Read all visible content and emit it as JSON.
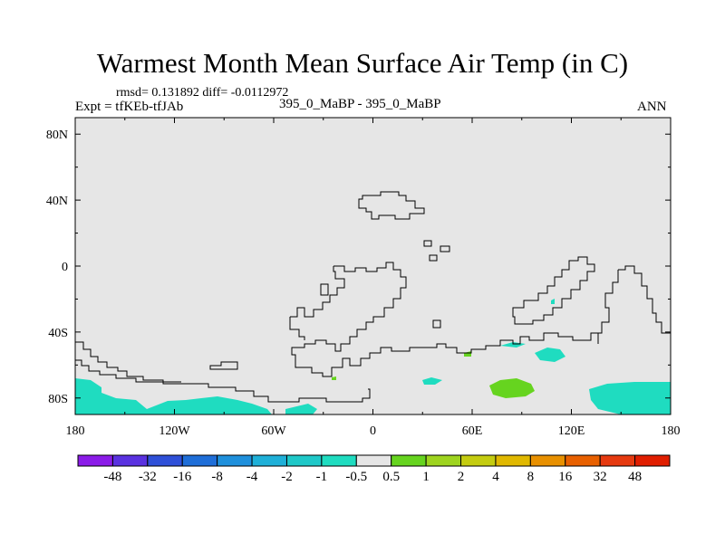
{
  "title": "Warmest Month Mean Surface Air Temp (in C)",
  "stats": "rmsd= 0.131892 diff= -0.0112972",
  "expt": "Expt = tfKEb-tfJAb",
  "center_label": "395_0_MaBP - 395_0_MaBP",
  "season": "ANN",
  "map": {
    "background_color": "#e6e6e6",
    "lat_ticks": [
      {
        "label": "80N",
        "value": 80
      },
      {
        "label": "40N",
        "value": 40
      },
      {
        "label": "0",
        "value": 0
      },
      {
        "label": "40S",
        "value": -40
      },
      {
        "label": "80S",
        "value": -80
      }
    ],
    "lon_ticks": [
      {
        "label": "180",
        "value": -180
      },
      {
        "label": "120W",
        "value": -120
      },
      {
        "label": "60W",
        "value": -60
      },
      {
        "label": "0",
        "value": 0
      },
      {
        "label": "60E",
        "value": 60
      },
      {
        "label": "120E",
        "value": 120
      },
      {
        "label": "180",
        "value": 180
      }
    ]
  },
  "colorbar": {
    "labels": [
      "-48",
      "-32",
      "-16",
      "-8",
      "-4",
      "-2",
      "-1",
      "-0.5",
      "0.5",
      "1",
      "2",
      "4",
      "8",
      "16",
      "32",
      "48"
    ],
    "colors": [
      "#8b1ce8",
      "#5a32e0",
      "#2f50d8",
      "#1f6ed8",
      "#1f90dc",
      "#1fb0d8",
      "#1fc8c8",
      "#1fdcc0",
      "#e6e6e6",
      "#66d41f",
      "#9ed41f",
      "#c4cc10",
      "#e0b800",
      "#e89000",
      "#e86000",
      "#e63a10",
      "#e01e00"
    ]
  }
}
